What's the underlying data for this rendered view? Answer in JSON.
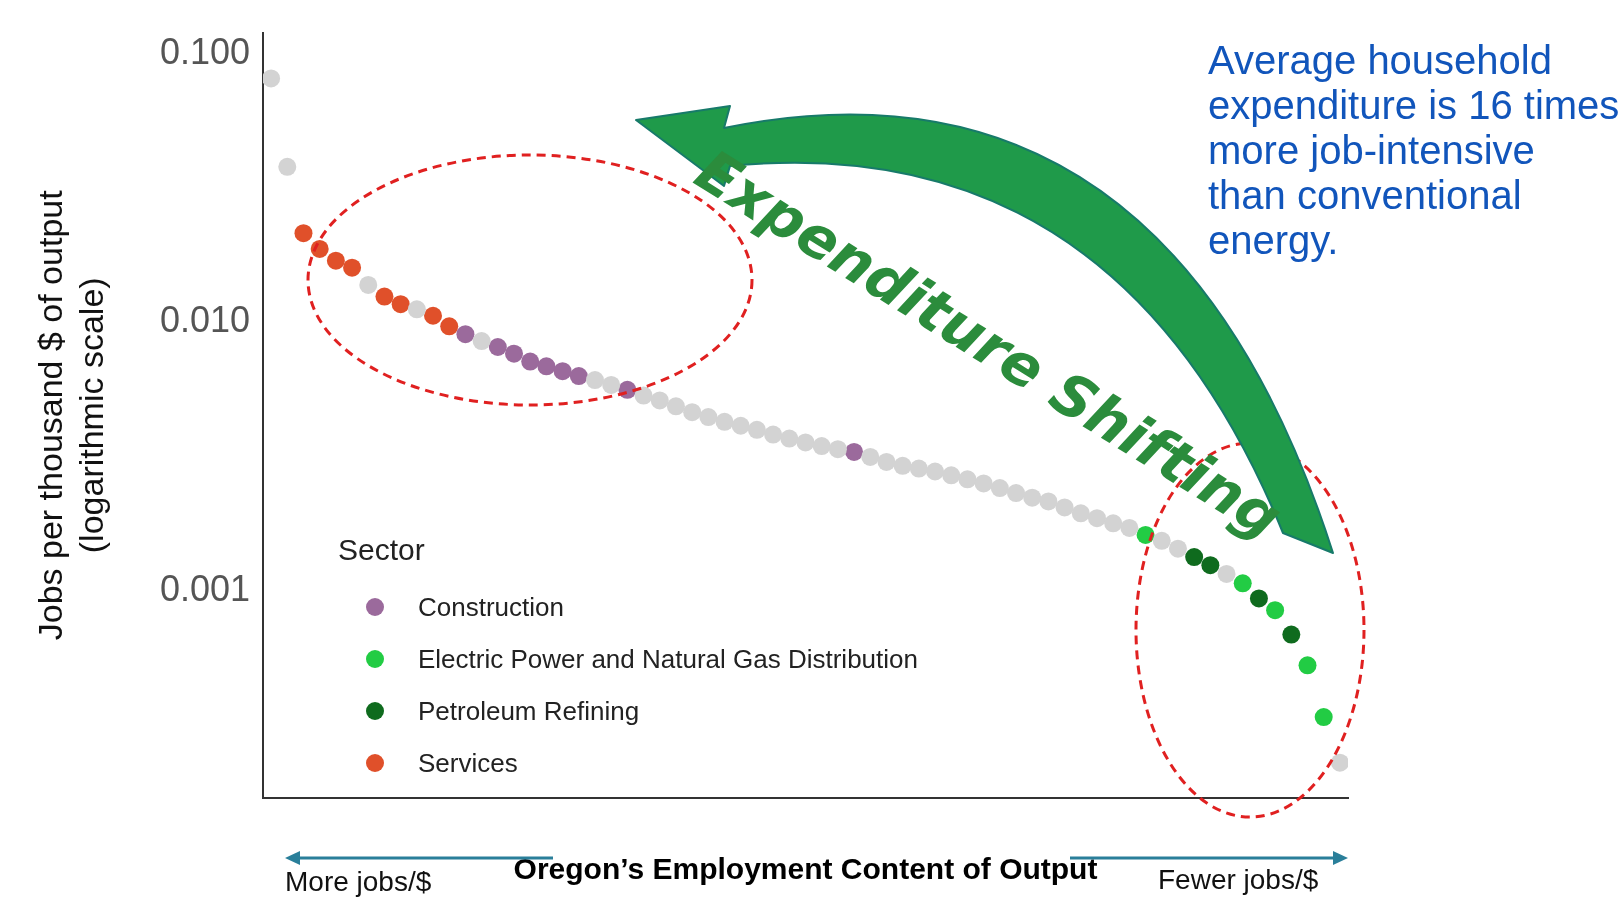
{
  "chart_data": {
    "type": "scatter",
    "xlabel": "Oregon’s Employment Content of Output",
    "ylabel": "Jobs per thousand $ of output\n(logarithmic scale)",
    "legend_title": "Sector",
    "legend": "bottom left",
    "marker": "circle",
    "log": "y",
    "tick_labels": "y",
    "ylim": [
      0.00017,
      0.12
    ],
    "yticks": [
      {
        "value": 0.1,
        "label": "0.100"
      },
      {
        "value": 0.01,
        "label": "0.010"
      },
      {
        "value": 0.001,
        "label": "0.001"
      }
    ],
    "annotations": [
      "Expenditure Shifting",
      "Average household expenditure is 16 times more job-intensive than conventional energy.",
      "More jobs/$",
      "Fewer jobs/$"
    ],
    "categories": [
      null,
      null,
      null,
      null,
      null,
      null,
      null,
      null,
      null,
      null,
      null,
      null,
      null,
      null,
      null,
      null,
      null,
      null,
      null,
      null,
      null,
      null,
      null,
      null,
      null,
      null,
      null,
      null,
      null,
      null,
      null,
      null,
      null,
      null,
      null,
      null,
      null,
      null,
      null,
      null,
      null,
      null,
      null,
      null,
      null,
      null,
      null,
      null,
      null,
      null,
      null,
      null,
      null,
      null,
      null,
      null,
      null,
      null,
      null,
      null,
      null,
      null,
      null,
      null,
      null,
      null,
      null
    ],
    "series": [
      {
        "color": "#d3d3d3",
        "values": [
          0.081,
          0.038,
          null,
          null,
          null,
          null,
          0.0138,
          null,
          null,
          0.0112,
          null,
          null,
          null,
          0.00853,
          null,
          null,
          null,
          null,
          null,
          null,
          0.00611,
          0.00586,
          null,
          0.00535,
          0.00513,
          0.00488,
          0.00464,
          0.00445,
          0.00427,
          0.00413,
          0.00399,
          0.00383,
          0.0037,
          0.00358,
          0.00347,
          0.00338,
          null,
          0.00316,
          0.00303,
          0.00293,
          0.00286,
          0.00279,
          0.0027,
          0.00261,
          0.00252,
          0.00242,
          0.00232,
          0.00223,
          0.00216,
          0.00205,
          0.00195,
          0.00187,
          0.00179,
          0.00172,
          null,
          0.00154,
          0.00144,
          null,
          null,
          0.00116,
          null,
          null,
          null,
          null,
          null,
          null,
          0.00023
        ]
      },
      {
        "name": "Construction",
        "color": "#9b6a9c",
        "values": [
          null,
          null,
          null,
          null,
          null,
          null,
          null,
          null,
          null,
          null,
          null,
          null,
          0.00905,
          null,
          0.00811,
          0.00766,
          0.00716,
          0.00687,
          0.00659,
          0.00632,
          null,
          null,
          0.00562,
          null,
          null,
          null,
          null,
          null,
          null,
          null,
          null,
          null,
          null,
          null,
          null,
          null,
          0.0033,
          null,
          null,
          null,
          null,
          null,
          null,
          null,
          null,
          null,
          null,
          null,
          null,
          null,
          null,
          null,
          null,
          null,
          null,
          null,
          null,
          null,
          null,
          null,
          null,
          null,
          null,
          null,
          null,
          null,
          null
        ]
      },
      {
        "name": "Electric Power and Natural Gas Distribution",
        "color": "#22cc44",
        "values": [
          null,
          null,
          null,
          null,
          null,
          null,
          null,
          null,
          null,
          null,
          null,
          null,
          null,
          null,
          null,
          null,
          null,
          null,
          null,
          null,
          null,
          null,
          null,
          null,
          null,
          null,
          null,
          null,
          null,
          null,
          null,
          null,
          null,
          null,
          null,
          null,
          null,
          null,
          null,
          null,
          null,
          null,
          null,
          null,
          null,
          null,
          null,
          null,
          null,
          null,
          null,
          null,
          null,
          null,
          0.00162,
          null,
          null,
          null,
          null,
          null,
          0.00107,
          null,
          0.00085,
          null,
          0.00053,
          0.00034,
          null
        ]
      },
      {
        "name": "Petroleum Refining",
        "color": "#0f6b1e",
        "values": [
          null,
          null,
          null,
          null,
          null,
          null,
          null,
          null,
          null,
          null,
          null,
          null,
          null,
          null,
          null,
          null,
          null,
          null,
          null,
          null,
          null,
          null,
          null,
          null,
          null,
          null,
          null,
          null,
          null,
          null,
          null,
          null,
          null,
          null,
          null,
          null,
          null,
          null,
          null,
          null,
          null,
          null,
          null,
          null,
          null,
          null,
          null,
          null,
          null,
          null,
          null,
          null,
          null,
          null,
          null,
          null,
          null,
          0.00134,
          0.00125,
          null,
          null,
          0.00094,
          null,
          0.00069,
          null,
          null,
          null
        ]
      },
      {
        "name": "Services",
        "color": "#e0502a",
        "values": [
          null,
          null,
          0.0215,
          0.0188,
          0.017,
          0.016,
          null,
          0.0125,
          0.0117,
          null,
          0.0106,
          0.00968,
          null,
          null,
          null,
          null,
          null,
          null,
          null,
          null,
          null,
          null,
          null,
          null,
          null,
          null,
          null,
          null,
          null,
          null,
          null,
          null,
          null,
          null,
          null,
          null,
          null,
          null,
          null,
          null,
          null,
          null,
          null,
          null,
          null,
          null,
          null,
          null,
          null,
          null,
          null,
          null,
          null,
          null,
          null,
          null,
          null,
          null,
          null,
          null,
          null,
          null,
          null,
          null,
          null,
          null,
          null
        ]
      }
    ]
  }
}
